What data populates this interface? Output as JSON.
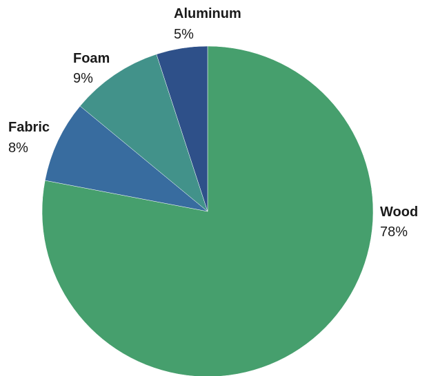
{
  "chart_data": {
    "type": "pie",
    "title": "",
    "start": "12 o'clock",
    "direction": "clockwise",
    "slices": [
      {
        "label": "Wood",
        "percent_label": "78%",
        "value": 78,
        "color": "#469f6d"
      },
      {
        "label": "Fabric",
        "percent_label": "8%",
        "value": 8,
        "color": "#386c9f"
      },
      {
        "label": "Foam",
        "percent_label": "9%",
        "value": 9,
        "color": "#42928a"
      },
      {
        "label": "Aluminum",
        "percent_label": "5%",
        "value": 5,
        "color": "#2e5089"
      }
    ]
  }
}
